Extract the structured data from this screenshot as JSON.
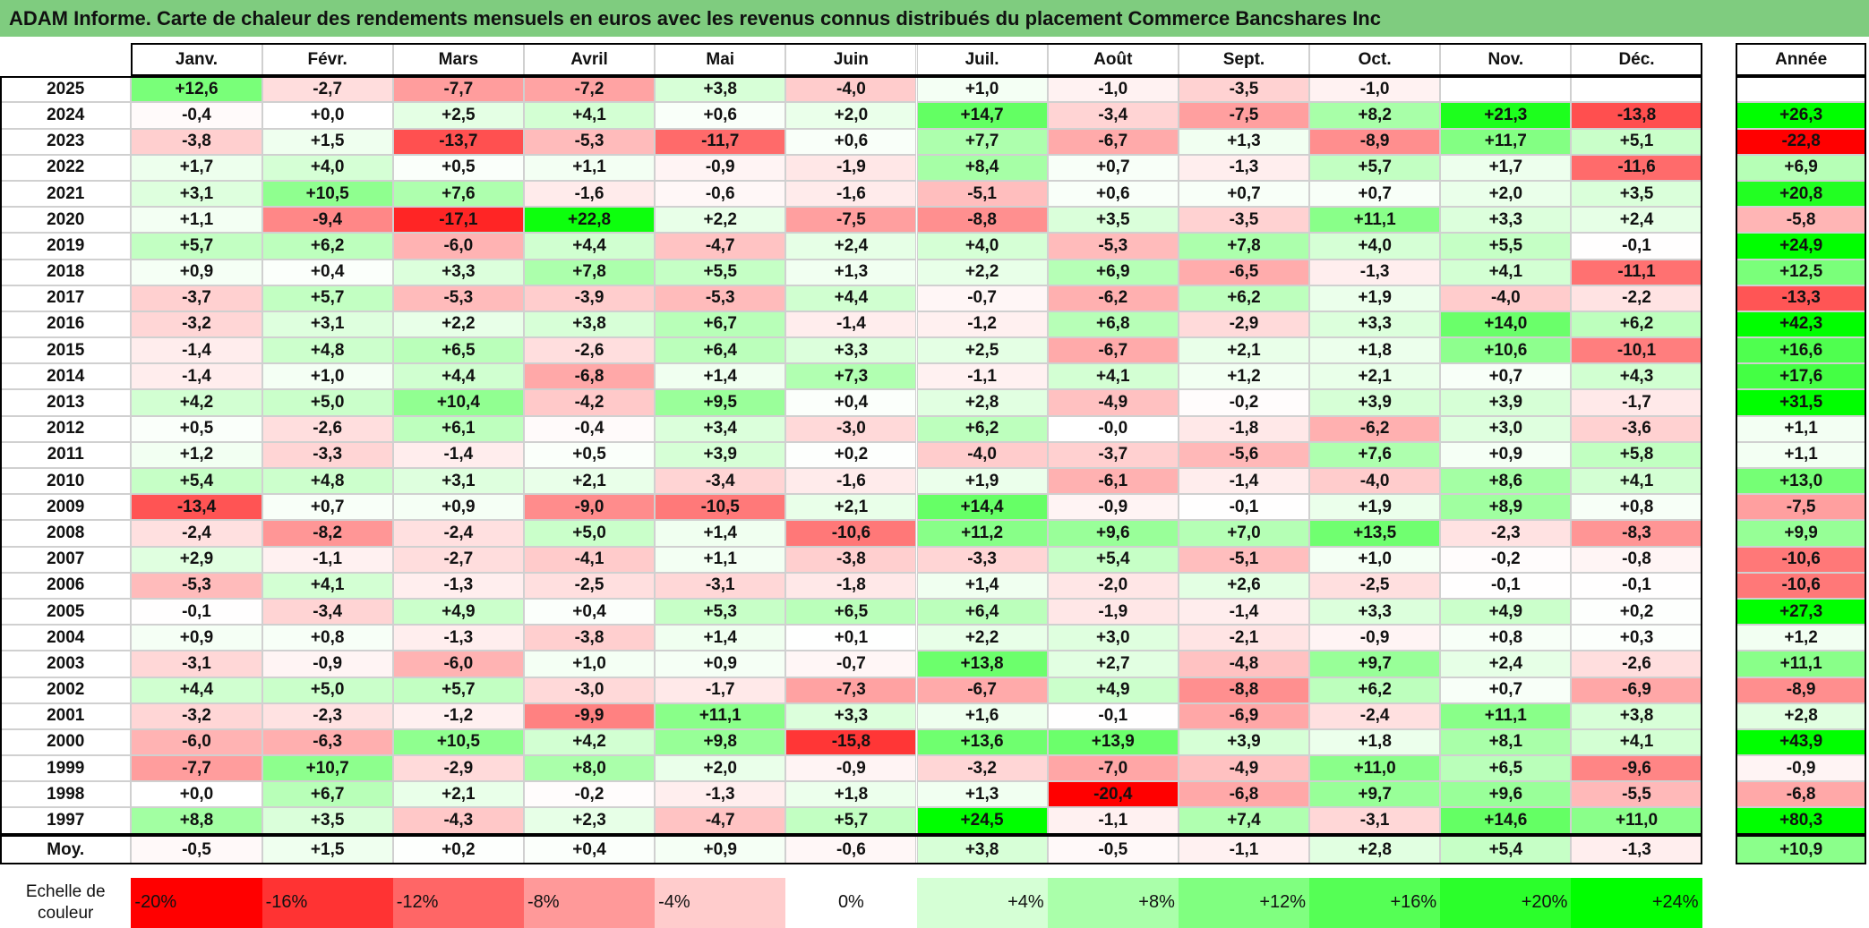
{
  "title": "ADAM Informe. Carte de chaleur des rendements mensuels en euros avec les revenus connus distribués du placement Commerce Bancshares Inc",
  "table": {
    "headers": [
      "Janv.",
      "Févr.",
      "Mars",
      "Avril",
      "Mai",
      "Juin",
      "Juil.",
      "Août",
      "Sept.",
      "Oct.",
      "Nov.",
      "Déc."
    ],
    "year_header": "Année",
    "rows": [
      {
        "label": "2025",
        "cells": [
          "+12,6",
          "-2,7",
          "-7,7",
          "-7,2",
          "+3,8",
          "-4,0",
          "+1,0",
          "-1,0",
          "-3,5",
          "-1,0",
          null,
          null
        ],
        "year": null
      },
      {
        "label": "2024",
        "cells": [
          "-0,4",
          "+0,0",
          "+2,5",
          "+4,1",
          "+0,6",
          "+2,0",
          "+14,7",
          "-3,4",
          "-7,5",
          "+8,2",
          "+21,3",
          "-13,8"
        ],
        "year": "+26,3"
      },
      {
        "label": "2023",
        "cells": [
          "-3,8",
          "+1,5",
          "-13,7",
          "-5,3",
          "-11,7",
          "+0,6",
          "+7,7",
          "-6,7",
          "+1,3",
          "-8,9",
          "+11,7",
          "+5,1"
        ],
        "year": "-22,8"
      },
      {
        "label": "2022",
        "cells": [
          "+1,7",
          "+4,0",
          "+0,5",
          "+1,1",
          "-0,9",
          "-1,9",
          "+8,4",
          "+0,7",
          "-1,3",
          "+5,7",
          "+1,7",
          "-11,6"
        ],
        "year": "+6,9"
      },
      {
        "label": "2021",
        "cells": [
          "+3,1",
          "+10,5",
          "+7,6",
          "-1,6",
          "-0,6",
          "-1,6",
          "-5,1",
          "+0,6",
          "+0,7",
          "+0,7",
          "+2,0",
          "+3,5"
        ],
        "year": "+20,8"
      },
      {
        "label": "2020",
        "cells": [
          "+1,1",
          "-9,4",
          "-17,1",
          "+22,8",
          "+2,2",
          "-7,5",
          "-8,8",
          "+3,5",
          "-3,5",
          "+11,1",
          "+3,3",
          "+2,4"
        ],
        "year": "-5,8"
      },
      {
        "label": "2019",
        "cells": [
          "+5,7",
          "+6,2",
          "-6,0",
          "+4,4",
          "-4,7",
          "+2,4",
          "+4,0",
          "-5,3",
          "+7,8",
          "+4,0",
          "+5,5",
          "-0,1"
        ],
        "year": "+24,9"
      },
      {
        "label": "2018",
        "cells": [
          "+0,9",
          "+0,4",
          "+3,3",
          "+7,8",
          "+5,5",
          "+1,3",
          "+2,2",
          "+6,9",
          "-6,5",
          "-1,3",
          "+4,1",
          "-11,1"
        ],
        "year": "+12,5"
      },
      {
        "label": "2017",
        "cells": [
          "-3,7",
          "+5,7",
          "-5,3",
          "-3,9",
          "-5,3",
          "+4,4",
          "-0,7",
          "-6,2",
          "+6,2",
          "+1,9",
          "-4,0",
          "-2,2"
        ],
        "year": "-13,3"
      },
      {
        "label": "2016",
        "cells": [
          "-3,2",
          "+3,1",
          "+2,2",
          "+3,8",
          "+6,7",
          "-1,4",
          "-1,2",
          "+6,8",
          "-2,9",
          "+3,3",
          "+14,0",
          "+6,2"
        ],
        "year": "+42,3"
      },
      {
        "label": "2015",
        "cells": [
          "-1,4",
          "+4,8",
          "+6,5",
          "-2,6",
          "+6,4",
          "+3,3",
          "+2,5",
          "-6,7",
          "+2,1",
          "+1,8",
          "+10,6",
          "-10,1"
        ],
        "year": "+16,6"
      },
      {
        "label": "2014",
        "cells": [
          "-1,4",
          "+1,0",
          "+4,4",
          "-6,8",
          "+1,4",
          "+7,3",
          "-1,1",
          "+4,1",
          "+1,2",
          "+2,1",
          "+0,7",
          "+4,3"
        ],
        "year": "+17,6"
      },
      {
        "label": "2013",
        "cells": [
          "+4,2",
          "+5,0",
          "+10,4",
          "-4,2",
          "+9,5",
          "+0,4",
          "+2,8",
          "-4,9",
          "-0,2",
          "+3,9",
          "+3,9",
          "-1,7"
        ],
        "year": "+31,5"
      },
      {
        "label": "2012",
        "cells": [
          "+0,5",
          "-2,6",
          "+6,1",
          "-0,4",
          "+3,4",
          "-3,0",
          "+6,2",
          "-0,0",
          "-1,8",
          "-6,2",
          "+3,0",
          "-3,6"
        ],
        "year": "+1,1"
      },
      {
        "label": "2011",
        "cells": [
          "+1,2",
          "-3,3",
          "-1,4",
          "+0,5",
          "+3,9",
          "+0,2",
          "-4,0",
          "-3,7",
          "-5,6",
          "+7,6",
          "+0,9",
          "+5,8"
        ],
        "year": "+1,1"
      },
      {
        "label": "2010",
        "cells": [
          "+5,4",
          "+4,8",
          "+3,1",
          "+2,1",
          "-3,4",
          "-1,6",
          "+1,9",
          "-6,1",
          "-1,4",
          "-4,0",
          "+8,6",
          "+4,1"
        ],
        "year": "+13,0"
      },
      {
        "label": "2009",
        "cells": [
          "-13,4",
          "+0,7",
          "+0,9",
          "-9,0",
          "-10,5",
          "+2,1",
          "+14,4",
          "-0,9",
          "-0,1",
          "+1,9",
          "+8,9",
          "+0,8"
        ],
        "year": "-7,5"
      },
      {
        "label": "2008",
        "cells": [
          "-2,4",
          "-8,2",
          "-2,4",
          "+5,0",
          "+1,4",
          "-10,6",
          "+11,2",
          "+9,6",
          "+7,0",
          "+13,5",
          "-2,3",
          "-8,3"
        ],
        "year": "+9,9"
      },
      {
        "label": "2007",
        "cells": [
          "+2,9",
          "-1,1",
          "-2,7",
          "-4,1",
          "+1,1",
          "-3,8",
          "-3,3",
          "+5,4",
          "-5,1",
          "+1,0",
          "-0,2",
          "-0,8"
        ],
        "year": "-10,6"
      },
      {
        "label": "2006",
        "cells": [
          "-5,3",
          "+4,1",
          "-1,3",
          "-2,5",
          "-3,1",
          "-1,8",
          "+1,4",
          "-2,0",
          "+2,6",
          "-2,5",
          "-0,1",
          "-0,1"
        ],
        "year": "-10,6"
      },
      {
        "label": "2005",
        "cells": [
          "-0,1",
          "-3,4",
          "+4,9",
          "+0,4",
          "+5,3",
          "+6,5",
          "+6,4",
          "-1,9",
          "-1,4",
          "+3,3",
          "+4,9",
          "+0,2"
        ],
        "year": "+27,3"
      },
      {
        "label": "2004",
        "cells": [
          "+0,9",
          "+0,8",
          "-1,3",
          "-3,8",
          "+1,4",
          "+0,1",
          "+2,2",
          "+3,0",
          "-2,1",
          "-0,9",
          "+0,8",
          "+0,3"
        ],
        "year": "+1,2"
      },
      {
        "label": "2003",
        "cells": [
          "-3,1",
          "-0,9",
          "-6,0",
          "+1,0",
          "+0,9",
          "-0,7",
          "+13,8",
          "+2,7",
          "-4,8",
          "+9,7",
          "+2,4",
          "-2,6"
        ],
        "year": "+11,1"
      },
      {
        "label": "2002",
        "cells": [
          "+4,4",
          "+5,0",
          "+5,7",
          "-3,0",
          "-1,7",
          "-7,3",
          "-6,7",
          "+4,9",
          "-8,8",
          "+6,2",
          "+0,7",
          "-6,9"
        ],
        "year": "-8,9"
      },
      {
        "label": "2001",
        "cells": [
          "-3,2",
          "-2,3",
          "-1,2",
          "-9,9",
          "+11,1",
          "+3,3",
          "+1,6",
          "-0,1",
          "-6,9",
          "-2,4",
          "+11,1",
          "+3,8"
        ],
        "year": "+2,8"
      },
      {
        "label": "2000",
        "cells": [
          "-6,0",
          "-6,3",
          "+10,5",
          "+4,2",
          "+9,8",
          "-15,8",
          "+13,6",
          "+13,9",
          "+3,9",
          "+1,8",
          "+8,1",
          "+4,1"
        ],
        "year": "+43,9"
      },
      {
        "label": "1999",
        "cells": [
          "-7,7",
          "+10,7",
          "-2,9",
          "+8,0",
          "+2,0",
          "-0,9",
          "-3,2",
          "-7,0",
          "-4,9",
          "+11,0",
          "+6,5",
          "-9,6"
        ],
        "year": "-0,9"
      },
      {
        "label": "1998",
        "cells": [
          "+0,0",
          "+6,7",
          "+2,1",
          "-0,2",
          "-1,3",
          "+1,8",
          "+1,3",
          "-20,4",
          "-6,8",
          "+9,7",
          "+9,6",
          "-5,5"
        ],
        "year": "-6,8"
      },
      {
        "label": "1997",
        "cells": [
          "+8,8",
          "+3,5",
          "-4,3",
          "+2,3",
          "-4,7",
          "+5,7",
          "+24,5",
          "-1,1",
          "+7,4",
          "-3,1",
          "+14,6",
          "+11,0"
        ],
        "year": "+80,3"
      }
    ],
    "average": {
      "label": "Moy.",
      "cells": [
        "-0,5",
        "+1,5",
        "+0,2",
        "+0,4",
        "+0,9",
        "-0,6",
        "+3,8",
        "-0,5",
        "-1,1",
        "+2,8",
        "+5,4",
        "-1,3"
      ],
      "year": "+10,9"
    }
  },
  "scale": {
    "label": "Echelle de couleur",
    "steps": [
      {
        "label": "-20%",
        "color": "#ff0000"
      },
      {
        "label": "-16%",
        "color": "#ff3333"
      },
      {
        "label": "-12%",
        "color": "#ff6666"
      },
      {
        "label": "-8%",
        "color": "#ff9999"
      },
      {
        "label": "-4%",
        "color": "#ffcccc"
      },
      {
        "label": "0%",
        "color": "#ffffff"
      },
      {
        "label": "+4%",
        "color": "#d5ffd5"
      },
      {
        "label": "+8%",
        "color": "#aaffaa"
      },
      {
        "label": "+12%",
        "color": "#80ff80"
      },
      {
        "label": "+16%",
        "color": "#55ff55"
      },
      {
        "label": "+20%",
        "color": "#2bff2b"
      },
      {
        "label": "+24%",
        "color": "#00ff00"
      }
    ]
  }
}
